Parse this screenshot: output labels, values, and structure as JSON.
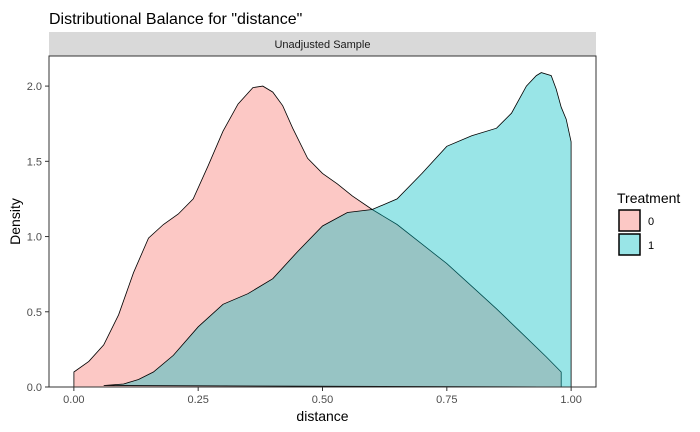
{
  "chart_data": {
    "type": "area",
    "title": "Distributional Balance for \"distance\"",
    "facet_label": "Unadjusted Sample",
    "xlabel": "distance",
    "ylabel": "Density",
    "xlim": [
      -0.05,
      1.05
    ],
    "ylim": [
      0,
      2.2
    ],
    "x_ticks": [
      0.0,
      0.25,
      0.5,
      0.75,
      1.0
    ],
    "x_tick_labels": [
      "0.00",
      "0.25",
      "0.50",
      "0.75",
      "1.00"
    ],
    "y_ticks": [
      0.0,
      0.5,
      1.0,
      1.5,
      2.0
    ],
    "y_tick_labels": [
      "0.0",
      "0.5",
      "1.0",
      "1.5",
      "2.0"
    ],
    "grid": false,
    "legend": {
      "title": "Treatment",
      "position": "right"
    },
    "series": [
      {
        "name": "0",
        "color": "#F8766D",
        "x": [
          0.0,
          0.0,
          0.03,
          0.06,
          0.09,
          0.12,
          0.15,
          0.18,
          0.21,
          0.24,
          0.27,
          0.3,
          0.33,
          0.36,
          0.38,
          0.4,
          0.42,
          0.44,
          0.47,
          0.5,
          0.53,
          0.56,
          0.6,
          0.65,
          0.7,
          0.75,
          0.8,
          0.85,
          0.9,
          0.95,
          0.98,
          0.98
        ],
        "values": [
          0.0,
          0.1,
          0.17,
          0.28,
          0.48,
          0.76,
          0.99,
          1.08,
          1.15,
          1.25,
          1.47,
          1.7,
          1.88,
          1.99,
          2.0,
          1.96,
          1.87,
          1.72,
          1.52,
          1.42,
          1.35,
          1.27,
          1.18,
          1.08,
          0.95,
          0.82,
          0.67,
          0.52,
          0.36,
          0.2,
          0.1,
          0.0
        ]
      },
      {
        "name": "1",
        "color": "#00BFC4",
        "x": [
          0.06,
          0.1,
          0.13,
          0.16,
          0.2,
          0.25,
          0.3,
          0.35,
          0.4,
          0.45,
          0.5,
          0.55,
          0.6,
          0.65,
          0.7,
          0.75,
          0.8,
          0.85,
          0.88,
          0.91,
          0.93,
          0.94,
          0.96,
          0.97,
          0.98,
          0.99,
          1.0,
          1.0
        ],
        "values": [
          0.01,
          0.02,
          0.05,
          0.1,
          0.21,
          0.4,
          0.55,
          0.62,
          0.72,
          0.9,
          1.07,
          1.16,
          1.18,
          1.25,
          1.42,
          1.6,
          1.67,
          1.72,
          1.82,
          2.0,
          2.07,
          2.09,
          2.07,
          1.98,
          1.86,
          1.78,
          1.63,
          0.0
        ]
      }
    ]
  }
}
